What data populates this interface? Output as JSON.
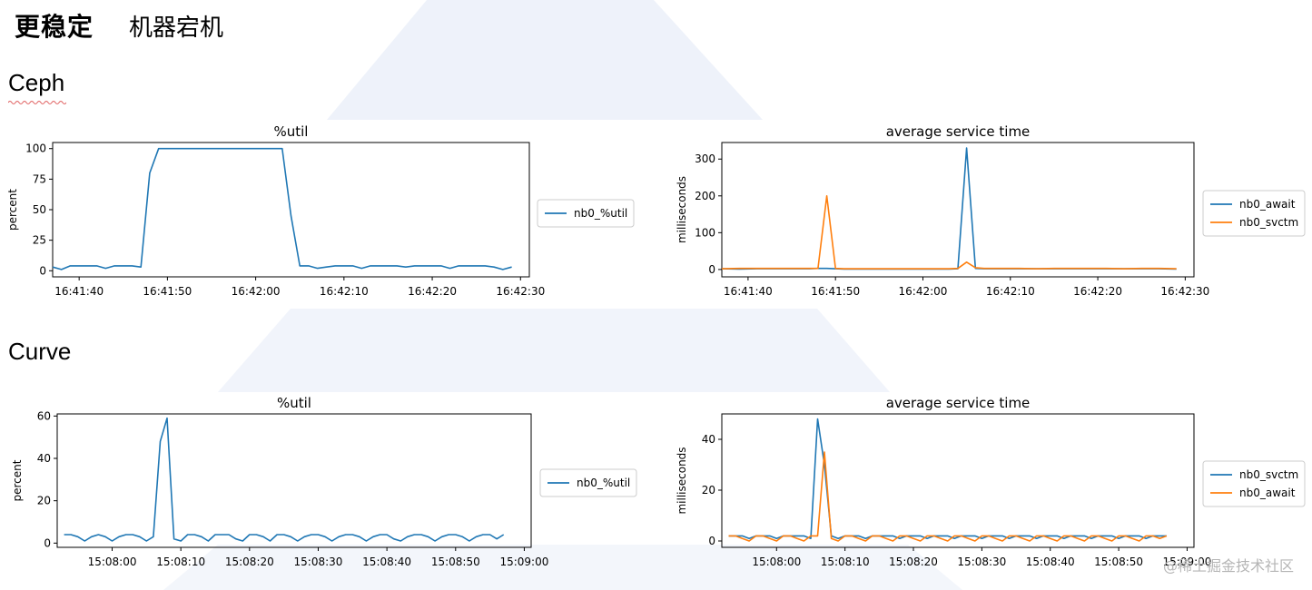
{
  "header": {
    "title": "更稳定",
    "subtitle": "机器宕机"
  },
  "sections": {
    "ceph": "Ceph",
    "curve": "Curve"
  },
  "watermark": "@稀土掘金技术社区",
  "colors": {
    "blue": "#1f77b4",
    "orange": "#ff7f0e"
  },
  "chart_data": [
    {
      "id": "ceph_util",
      "type": "line",
      "title": "%util",
      "xlabel": "",
      "ylabel": "percent",
      "x_start": "16:41:37",
      "xlim": [
        0,
        54
      ],
      "ylim": [
        -5,
        105
      ],
      "yticks": [
        0,
        25,
        50,
        75,
        100
      ],
      "xticks": [
        {
          "x": 3,
          "label": "16:41:40"
        },
        {
          "x": 13,
          "label": "16:41:50"
        },
        {
          "x": 23,
          "label": "16:42:00"
        },
        {
          "x": 33,
          "label": "16:42:10"
        },
        {
          "x": 43,
          "label": "16:42:20"
        },
        {
          "x": 53,
          "label": "16:42:30"
        }
      ],
      "series": [
        {
          "name": "nb0_%util",
          "color": "#1f77b4",
          "x": [
            0,
            1,
            2,
            3,
            4,
            5,
            6,
            7,
            8,
            9,
            10,
            11,
            12,
            13,
            14,
            15,
            16,
            17,
            18,
            19,
            20,
            21,
            22,
            23,
            24,
            25,
            26,
            27,
            28,
            29,
            30,
            31,
            32,
            33,
            34,
            35,
            36,
            37,
            38,
            39,
            40,
            41,
            42,
            43,
            44,
            45,
            46,
            47,
            48,
            49,
            50,
            51,
            52
          ],
          "y": [
            3,
            1,
            4,
            4,
            4,
            4,
            2,
            4,
            4,
            4,
            3,
            80,
            100,
            100,
            100,
            100,
            100,
            100,
            100,
            100,
            100,
            100,
            100,
            100,
            100,
            100,
            100,
            45,
            4,
            4,
            2,
            3,
            4,
            4,
            4,
            2,
            4,
            4,
            4,
            4,
            3,
            4,
            4,
            4,
            4,
            2,
            4,
            4,
            4,
            4,
            3,
            1,
            3
          ]
        }
      ]
    },
    {
      "id": "ceph_svc",
      "type": "line",
      "title": "average service time",
      "xlabel": "",
      "ylabel": "milliseconds",
      "x_start": "16:41:37",
      "xlim": [
        0,
        54
      ],
      "ylim": [
        -20,
        345
      ],
      "yticks": [
        0,
        100,
        200,
        300
      ],
      "xticks": [
        {
          "x": 3,
          "label": "16:41:40"
        },
        {
          "x": 13,
          "label": "16:41:50"
        },
        {
          "x": 23,
          "label": "16:42:00"
        },
        {
          "x": 33,
          "label": "16:42:10"
        },
        {
          "x": 43,
          "label": "16:42:20"
        },
        {
          "x": 53,
          "label": "16:42:30"
        }
      ],
      "series": [
        {
          "name": "nb0_await",
          "color": "#1f77b4",
          "x": [
            0,
            2,
            4,
            6,
            8,
            10,
            11,
            12,
            13,
            14,
            16,
            18,
            20,
            22,
            24,
            26,
            27,
            28,
            29,
            30,
            32,
            34,
            36,
            38,
            40,
            42,
            44,
            46,
            48,
            50,
            52
          ],
          "y": [
            2,
            1,
            2,
            2,
            2,
            2,
            3,
            3,
            2,
            1,
            1,
            1,
            1,
            1,
            1,
            1,
            2,
            330,
            3,
            2,
            2,
            2,
            2,
            2,
            2,
            2,
            2,
            2,
            2,
            2,
            1
          ]
        },
        {
          "name": "nb0_svctm",
          "color": "#ff7f0e",
          "x": [
            0,
            2,
            4,
            6,
            8,
            10,
            11,
            12,
            13,
            14,
            16,
            18,
            20,
            22,
            24,
            26,
            27,
            28,
            29,
            30,
            32,
            34,
            36,
            38,
            40,
            42,
            44,
            46,
            48,
            50,
            52
          ],
          "y": [
            2,
            3,
            3,
            3,
            3,
            3,
            3,
            200,
            3,
            2,
            2,
            2,
            2,
            2,
            2,
            2,
            3,
            20,
            5,
            3,
            3,
            3,
            2,
            3,
            3,
            3,
            3,
            2,
            3,
            3,
            2
          ]
        }
      ]
    },
    {
      "id": "curve_util",
      "type": "line",
      "title": "%util",
      "xlabel": "",
      "ylabel": "percent",
      "x_start": "15:07:53",
      "xlim": [
        -1,
        68
      ],
      "ylim": [
        -2,
        61
      ],
      "yticks": [
        0,
        20,
        40,
        60
      ],
      "xticks": [
        {
          "x": 7,
          "label": "15:08:00"
        },
        {
          "x": 17,
          "label": "15:08:10"
        },
        {
          "x": 27,
          "label": "15:08:20"
        },
        {
          "x": 37,
          "label": "15:08:30"
        },
        {
          "x": 47,
          "label": "15:08:40"
        },
        {
          "x": 57,
          "label": "15:08:50"
        },
        {
          "x": 67,
          "label": "15:09:00"
        }
      ],
      "series": [
        {
          "name": "nb0_%util",
          "color": "#1f77b4",
          "x": [
            0,
            1,
            2,
            3,
            4,
            5,
            6,
            7,
            8,
            9,
            10,
            11,
            12,
            13,
            14,
            15,
            16,
            17,
            18,
            19,
            20,
            21,
            22,
            23,
            24,
            25,
            26,
            27,
            28,
            29,
            30,
            31,
            32,
            33,
            34,
            35,
            36,
            37,
            38,
            39,
            40,
            41,
            42,
            43,
            44,
            45,
            46,
            47,
            48,
            49,
            50,
            51,
            52,
            53,
            54,
            55,
            56,
            57,
            58,
            59,
            60,
            61,
            62,
            63,
            64
          ],
          "y": [
            4,
            4,
            3,
            1,
            3,
            4,
            3,
            1,
            3,
            4,
            4,
            3,
            1,
            3,
            48,
            59,
            2,
            1,
            4,
            4,
            3,
            1,
            4,
            4,
            4,
            2,
            1,
            4,
            4,
            3,
            1,
            4,
            4,
            3,
            1,
            3,
            4,
            4,
            3,
            1,
            3,
            4,
            4,
            3,
            1,
            3,
            4,
            4,
            2,
            1,
            3,
            4,
            4,
            3,
            1,
            3,
            4,
            4,
            3,
            1,
            3,
            4,
            4,
            2,
            4
          ]
        }
      ]
    },
    {
      "id": "curve_svc",
      "type": "line",
      "title": "average service time",
      "xlabel": "",
      "ylabel": "milliseconds",
      "x_start": "15:07:53",
      "xlim": [
        -1,
        68
      ],
      "ylim": [
        -2.5,
        50
      ],
      "yticks": [
        0,
        20,
        40
      ],
      "xticks": [
        {
          "x": 7,
          "label": "15:08:00"
        },
        {
          "x": 17,
          "label": "15:08:10"
        },
        {
          "x": 27,
          "label": "15:08:20"
        },
        {
          "x": 37,
          "label": "15:08:30"
        },
        {
          "x": 47,
          "label": "15:08:40"
        },
        {
          "x": 57,
          "label": "15:08:50"
        },
        {
          "x": 67,
          "label": "15:09:00"
        }
      ],
      "series": [
        {
          "name": "nb0_svctm",
          "color": "#1f77b4",
          "x": [
            0,
            1,
            2,
            3,
            4,
            5,
            6,
            7,
            8,
            9,
            10,
            11,
            12,
            13,
            14,
            15,
            16,
            17,
            18,
            19,
            20,
            21,
            22,
            23,
            24,
            25,
            26,
            27,
            28,
            29,
            30,
            31,
            32,
            33,
            34,
            35,
            36,
            37,
            38,
            39,
            40,
            41,
            42,
            43,
            44,
            45,
            46,
            47,
            48,
            49,
            50,
            51,
            52,
            53,
            54,
            55,
            56,
            57,
            58,
            59,
            60,
            61,
            62,
            63,
            64
          ],
          "y": [
            2,
            2,
            2,
            1,
            2,
            2,
            2,
            1,
            2,
            2,
            2,
            2,
            1,
            48,
            30,
            2,
            1,
            2,
            2,
            2,
            1,
            2,
            2,
            2,
            2,
            1,
            2,
            2,
            2,
            1,
            2,
            2,
            2,
            1,
            2,
            2,
            2,
            1,
            2,
            2,
            2,
            1,
            2,
            2,
            2,
            1,
            2,
            2,
            2,
            1,
            2,
            2,
            2,
            1,
            2,
            2,
            2,
            1,
            2,
            2,
            2,
            1,
            2,
            2,
            2
          ]
        },
        {
          "name": "nb0_await",
          "color": "#ff7f0e",
          "x": [
            0,
            1,
            2,
            3,
            4,
            5,
            6,
            7,
            8,
            9,
            10,
            11,
            12,
            13,
            14,
            15,
            16,
            17,
            18,
            19,
            20,
            21,
            22,
            23,
            24,
            25,
            26,
            27,
            28,
            29,
            30,
            31,
            32,
            33,
            34,
            35,
            36,
            37,
            38,
            39,
            40,
            41,
            42,
            43,
            44,
            45,
            46,
            47,
            48,
            49,
            50,
            51,
            52,
            53,
            54,
            55,
            56,
            57,
            58,
            59,
            60,
            61,
            62,
            63,
            64
          ],
          "y": [
            2,
            2,
            1,
            0,
            2,
            2,
            1,
            0,
            2,
            2,
            1,
            0,
            2,
            2,
            35,
            1,
            0,
            2,
            2,
            1,
            0,
            2,
            2,
            1,
            0,
            2,
            2,
            1,
            0,
            2,
            2,
            1,
            0,
            2,
            2,
            1,
            0,
            2,
            2,
            1,
            0,
            2,
            2,
            1,
            0,
            2,
            2,
            1,
            0,
            2,
            2,
            1,
            0,
            2,
            2,
            1,
            0,
            2,
            2,
            1,
            0,
            2,
            2,
            1,
            2
          ]
        }
      ]
    }
  ]
}
